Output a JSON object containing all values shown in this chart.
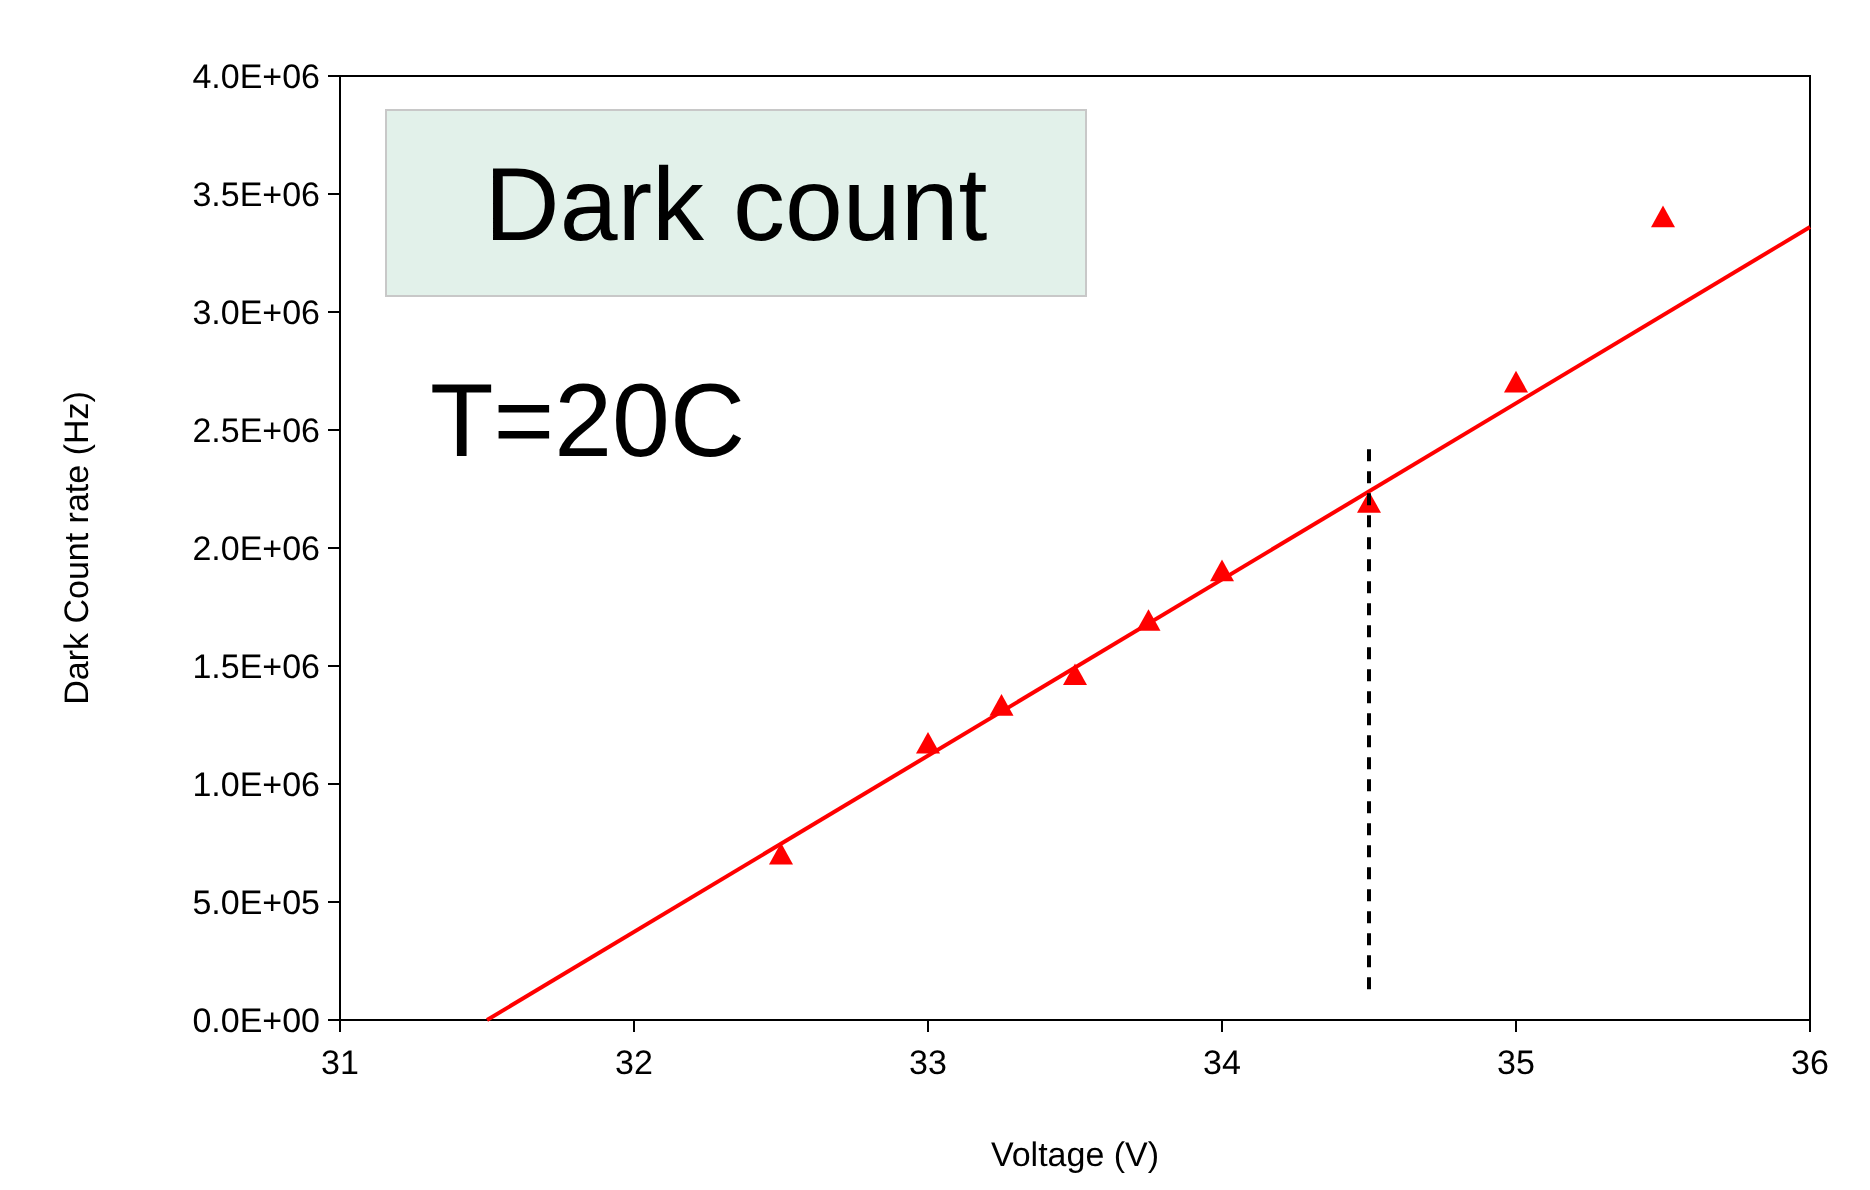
{
  "chart_data": {
    "type": "scatter",
    "xlabel": "Voltage (V)",
    "ylabel": "Dark Count rate (Hz)",
    "annotations": [
      "Dark count",
      "T=20C"
    ],
    "xlim": [
      31,
      36
    ],
    "xticks": [
      31,
      32,
      33,
      34,
      35,
      36
    ],
    "ylim": [
      0,
      4000000
    ],
    "yticks": [
      {
        "value": 0,
        "label": "0.0E+00"
      },
      {
        "value": 500000,
        "label": "5.0E+05"
      },
      {
        "value": 1000000,
        "label": "1.0E+06"
      },
      {
        "value": 1500000,
        "label": "1.5E+06"
      },
      {
        "value": 2000000,
        "label": "2.0E+06"
      },
      {
        "value": 2500000,
        "label": "2.5E+06"
      },
      {
        "value": 3000000,
        "label": "3.0E+06"
      },
      {
        "value": 3500000,
        "label": "3.5E+06"
      },
      {
        "value": 4000000,
        "label": "4.0E+06"
      }
    ],
    "grid": false,
    "series": [
      {
        "color": "#ff0000",
        "marker": "triangle",
        "x": [
          32.5,
          33,
          33.25,
          33.5,
          33.75,
          34,
          34.5,
          35,
          35.5
        ],
        "values": [
          700000,
          1170000,
          1330000,
          1460000,
          1690000,
          1900000,
          2190000,
          2700000,
          3400000
        ]
      },
      {
        "type": "line",
        "color": "#ff0000",
        "line_style": "solid",
        "marker": "none",
        "x": [
          31.5,
          36
        ],
        "values": [
          0,
          3360000
        ]
      },
      {
        "type": "line",
        "color": "#000000",
        "line_style": "dashed",
        "marker": "none",
        "x": [
          34.5,
          34.5
        ],
        "values": [
          130000,
          2440000
        ]
      }
    ]
  }
}
